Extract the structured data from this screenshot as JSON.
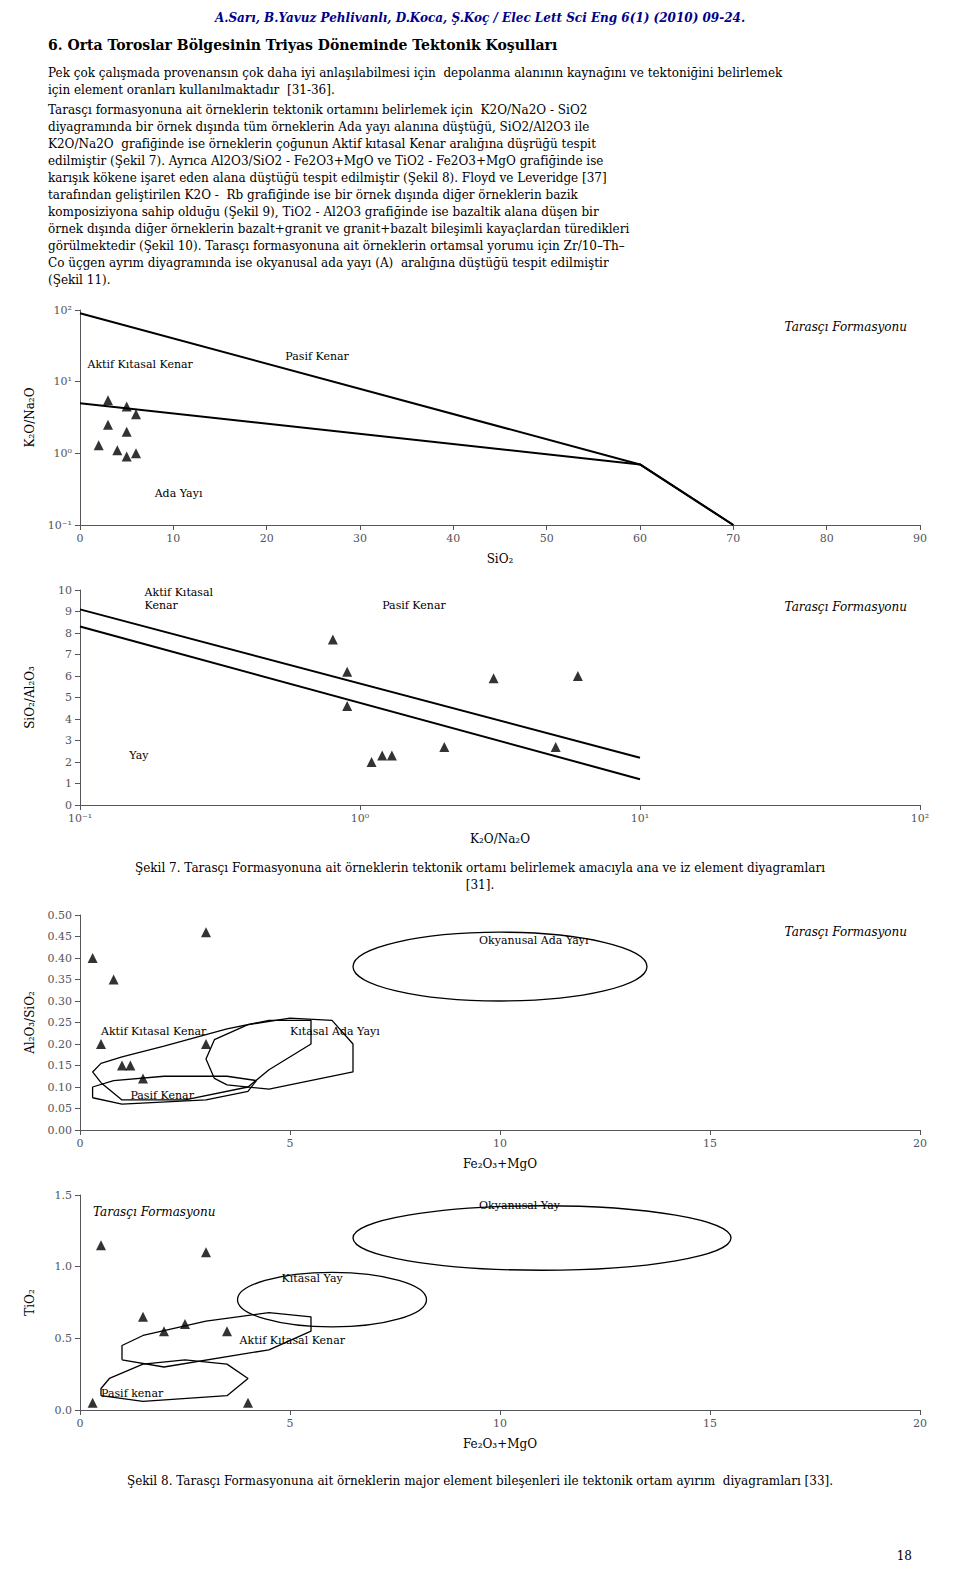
{
  "page_header": "A.Sarı, B.Yavuz Pehlivanlı, D.Koca, Ş.Koç / Elec Lett Sci Eng 6(1) (2010) 09-24.",
  "section_title": "6. Orta Toroslar Bölgesinin Triyas Döneminde Tektonik Koşulları",
  "body_text_1": "Pek çok çalışmada provenansın çok daha iyi anlaşılabilmesi için  depolanma alanının kaynağını ve tektoniğini belirlemek için element oranları kullanılmaktadır  [31-36].",
  "body_text_2_lines": [
    "Tarasçı formasyonuna ait örneklerin tektonik ortamını belirlemek için  K2O/Na2O - SiO2",
    "diyagramında bir örnek dışında tüm örneklerin Ada yayı alanına düştüğü, SiO2/Al2O3 ile",
    "K2O/Na2O  grafiğinde ise örneklerin çoğunun Aktif kıtasal Kenar aralığına düşrüğü tespit",
    "edilmiştir (Şekil 7). Ayrıca Al2O3/SiO2 - Fe2O3+MgO ve TiO2 - Fe2O3+MgO grafiğinde ise",
    "karışık kökene işaret eden alana düştüğü tespit edilmiştir (Şekil 8). Floyd ve Leveridge [37]",
    "tarafından geliştirilen K2O -  Rb grafiğinde ise bir örnek dışında diğer örneklerin bazik",
    "komposiziyona sahip olduğu (Şekil 9), TiO2 - Al2O3 grafiğinde ise bazaltik alana düşen bir",
    "örnek dışında diğer örneklerin bazalt+granit ve granit+bazalt bileşimli kayaçlardan türedikleri",
    "görülmektedir (Şekil 10). Tarasçı formasyonuna ait örneklerin ortamsal yorumu için Zr/10–Th–",
    "Co üçgen ayrım diyagramında ise okyanusal ada yayı (A)  aralığına düştüğü tespit edilmiştir",
    "(Şekil 11)."
  ],
  "captions": [
    [
      "Şekil 7. Tarasçı Formasyonuna ait örneklerin tektonik ortamı belirlemek amacıyla ana ve iz element diyagramları",
      "[31]."
    ],
    [
      "Şekil 8. Tarasçı Formasyonuna ait örneklerin major element bileşenleri ile tektonik ortam ayırım  diyagramları [33]."
    ]
  ],
  "page_number": "18",
  "chart_data": [
    {
      "type": "scatter",
      "title": "Tarasçı Formasyonu",
      "x_label": "SiO₂",
      "y_label": "K₂O/Na₂O",
      "log": "y",
      "grid": false,
      "xlim": [
        0,
        90
      ],
      "ylim": [
        0.1,
        100
      ],
      "xticks": [
        0,
        10,
        20,
        30,
        40,
        50,
        60,
        70,
        80,
        90
      ],
      "yticks": [
        {
          "value": 0.1,
          "label": "10⁻¹"
        },
        {
          "value": 1,
          "label": "10⁰"
        },
        {
          "value": 10,
          "label": "10¹"
        },
        {
          "value": 100,
          "label": "10²"
        }
      ],
      "lines": [
        {
          "x": [
            0,
            60,
            70
          ],
          "y": [
            90,
            0.7,
            0.1
          ],
          "color": "#000000"
        },
        {
          "x": [
            0,
            60,
            70
          ],
          "y": [
            5,
            0.7,
            0.1
          ],
          "color": "#000000"
        }
      ],
      "annotations": [
        {
          "text": "Pasif Kenar",
          "x": 22,
          "y": 18
        },
        {
          "text": "Aktif Kıtasal Kenar",
          "x": 0.8,
          "y": 14
        },
        {
          "text": "Ada Yayı",
          "x": 8,
          "y": 0.22
        }
      ],
      "points": {
        "x": [
          3,
          5,
          6,
          3,
          5,
          2,
          4,
          5,
          6
        ],
        "y": [
          5.5,
          4.5,
          3.5,
          2.5,
          2.0,
          1.3,
          1.1,
          0.9,
          1.0
        ],
        "marker": "triangle",
        "color": "#000000"
      }
    },
    {
      "type": "scatter",
      "title": "Tarasçı Formasyonu",
      "x_label": "K₂O/Na₂O",
      "y_label": "SiO₂/Al₂O₃",
      "log": "x",
      "grid": false,
      "xlim": [
        0.1,
        100
      ],
      "ylim": [
        0,
        10
      ],
      "xticks": [
        {
          "value": 0.1,
          "label": "10⁻¹"
        },
        {
          "value": 1,
          "label": "10⁰"
        },
        {
          "value": 10,
          "label": "10¹"
        },
        {
          "value": 100,
          "label": "10²"
        }
      ],
      "yticks": [
        0,
        1,
        2,
        3,
        4,
        5,
        6,
        7,
        8,
        9,
        10
      ],
      "lines": [
        {
          "x": [
            0.1,
            10
          ],
          "y": [
            8.3,
            1.2
          ],
          "color": "#000000"
        },
        {
          "x": [
            0.1,
            10
          ],
          "y": [
            9.1,
            2.2
          ],
          "color": "#000000"
        }
      ],
      "annotations": [
        {
          "text": "Aktif Kıtasal\nKenar",
          "x": 0.17,
          "y": 9.0
        },
        {
          "text": "Pasif Kenar",
          "x": 1.2,
          "y": 9.0
        },
        {
          "text": "Yay",
          "x": 0.15,
          "y": 2.0
        }
      ],
      "points": {
        "x": [
          0.8,
          0.9,
          0.9,
          1.1,
          1.2,
          1.3,
          2.0,
          3.0,
          5.0,
          6.0
        ],
        "y": [
          7.7,
          6.2,
          4.6,
          2.0,
          2.3,
          2.3,
          2.7,
          5.9,
          2.7,
          6.0
        ],
        "marker": "triangle",
        "color": "#000000"
      }
    },
    {
      "type": "scatter",
      "title": "Tarasçı Formasyonu",
      "x_label": "Fe₂O₃+MgO",
      "y_label": "Al₂O₃/SiO₂",
      "grid": false,
      "xlim": [
        0,
        20
      ],
      "ylim": [
        0,
        0.5
      ],
      "xticks": [
        0,
        5,
        10,
        15,
        20
      ],
      "yticks": [
        {
          "value": 0,
          "label": "0.00"
        },
        {
          "value": 0.05,
          "label": "0.05"
        },
        {
          "value": 0.1,
          "label": "0.10"
        },
        {
          "value": 0.15,
          "label": "0.15"
        },
        {
          "value": 0.2,
          "label": "0.20"
        },
        {
          "value": 0.25,
          "label": "0.25"
        },
        {
          "value": 0.3,
          "label": "0.30"
        },
        {
          "value": 0.35,
          "label": "0.35"
        },
        {
          "value": 0.4,
          "label": "0.40"
        },
        {
          "value": 0.45,
          "label": "0.45"
        },
        {
          "value": 0.5,
          "label": "0.50"
        }
      ],
      "ellipses": [
        {
          "center": [
            10,
            0.38
          ],
          "width": 7,
          "height": 0.16,
          "color": "#000000"
        }
      ],
      "regions": [
        {
          "x": [
            0.5,
            1.0,
            2.5,
            4.0,
            4.5,
            5.5,
            5.5,
            4.5,
            3.5,
            2.0,
            1.0,
            0.5,
            0.3,
            0.5
          ],
          "y": [
            0.11,
            0.07,
            0.07,
            0.1,
            0.14,
            0.2,
            0.255,
            0.255,
            0.235,
            0.195,
            0.17,
            0.155,
            0.135,
            0.11
          ],
          "color": "#000000"
        },
        {
          "x": [
            3.5,
            4.5,
            6.5,
            6.5,
            6.0,
            5.0,
            4.0,
            3.2,
            3.0,
            3.2,
            3.5
          ],
          "y": [
            0.105,
            0.095,
            0.135,
            0.2,
            0.255,
            0.26,
            0.245,
            0.21,
            0.165,
            0.12,
            0.105
          ],
          "color": "#000000"
        },
        {
          "x": [
            0.3,
            1.0,
            3.0,
            4.0,
            4.2,
            3.5,
            2.0,
            0.8,
            0.3,
            0.3
          ],
          "y": [
            0.075,
            0.06,
            0.07,
            0.09,
            0.115,
            0.125,
            0.125,
            0.115,
            0.1,
            0.075
          ],
          "color": "#000000"
        }
      ],
      "annotations": [
        {
          "text": "Okyanusal Ada Yayı",
          "x": 9.5,
          "y": 0.425
        },
        {
          "text": "Aktif Kıtasal Kenar",
          "x": 0.5,
          "y": 0.215
        },
        {
          "text": "Kıtasal Ada Yayı",
          "x": 5.0,
          "y": 0.215
        },
        {
          "text": "Pasif Kenar",
          "x": 1.2,
          "y": 0.065
        }
      ],
      "points": {
        "x": [
          0.3,
          0.5,
          0.8,
          1.0,
          1.2,
          1.5,
          3.0,
          3.0
        ],
        "y": [
          0.4,
          0.2,
          0.35,
          0.15,
          0.15,
          0.12,
          0.46,
          0.2
        ],
        "marker": "triangle",
        "color": "#000000"
      }
    },
    {
      "type": "scatter",
      "title": "Tarasçı Formasyonu",
      "x_label": "Fe₂O₃+MgO",
      "y_label": "TiO₂",
      "grid": false,
      "xlim": [
        0,
        20
      ],
      "ylim": [
        0,
        1.5
      ],
      "xticks": [
        0,
        5,
        10,
        15,
        20
      ],
      "yticks": [
        {
          "value": 0,
          "label": "0.0"
        },
        {
          "value": 0.5,
          "label": "0.5"
        },
        {
          "value": 1.0,
          "label": "1.0"
        },
        {
          "value": 1.5,
          "label": "1.5"
        }
      ],
      "ellipses": [
        {
          "center": [
            11,
            1.2
          ],
          "width": 9,
          "height": 0.45,
          "color": "#000000"
        },
        {
          "center": [
            6,
            0.77
          ],
          "width": 4.5,
          "height": 0.38,
          "color": "#000000"
        }
      ],
      "regions": [
        {
          "x": [
            1.0,
            2.0,
            4.5,
            5.5,
            5.5,
            4.5,
            3.0,
            1.5,
            1.0,
            1.0
          ],
          "y": [
            0.35,
            0.3,
            0.42,
            0.55,
            0.65,
            0.68,
            0.62,
            0.52,
            0.45,
            0.35
          ],
          "color": "#000000"
        },
        {
          "x": [
            0.5,
            1.5,
            3.5,
            4.0,
            3.5,
            2.5,
            1.5,
            0.7,
            0.5,
            0.5
          ],
          "y": [
            0.1,
            0.06,
            0.1,
            0.22,
            0.32,
            0.35,
            0.32,
            0.22,
            0.15,
            0.1
          ],
          "color": "#000000"
        }
      ],
      "annotations": [
        {
          "text": "Okyanusal Yay",
          "x": 9.5,
          "y": 1.38
        },
        {
          "text": "Kıtasal Yay",
          "x": 4.8,
          "y": 0.87
        },
        {
          "text": "Aktif Kıtasal Kenar",
          "x": 3.8,
          "y": 0.44
        },
        {
          "text": "Pasif kenar",
          "x": 0.5,
          "y": 0.07
        }
      ],
      "points": {
        "x": [
          0.3,
          0.5,
          1.5,
          2.0,
          2.5,
          3.0,
          3.5,
          4.0
        ],
        "y": [
          0.05,
          1.15,
          0.65,
          0.55,
          0.6,
          1.1,
          0.55,
          0.05
        ],
        "marker": "triangle",
        "color": "#000000"
      }
    }
  ]
}
